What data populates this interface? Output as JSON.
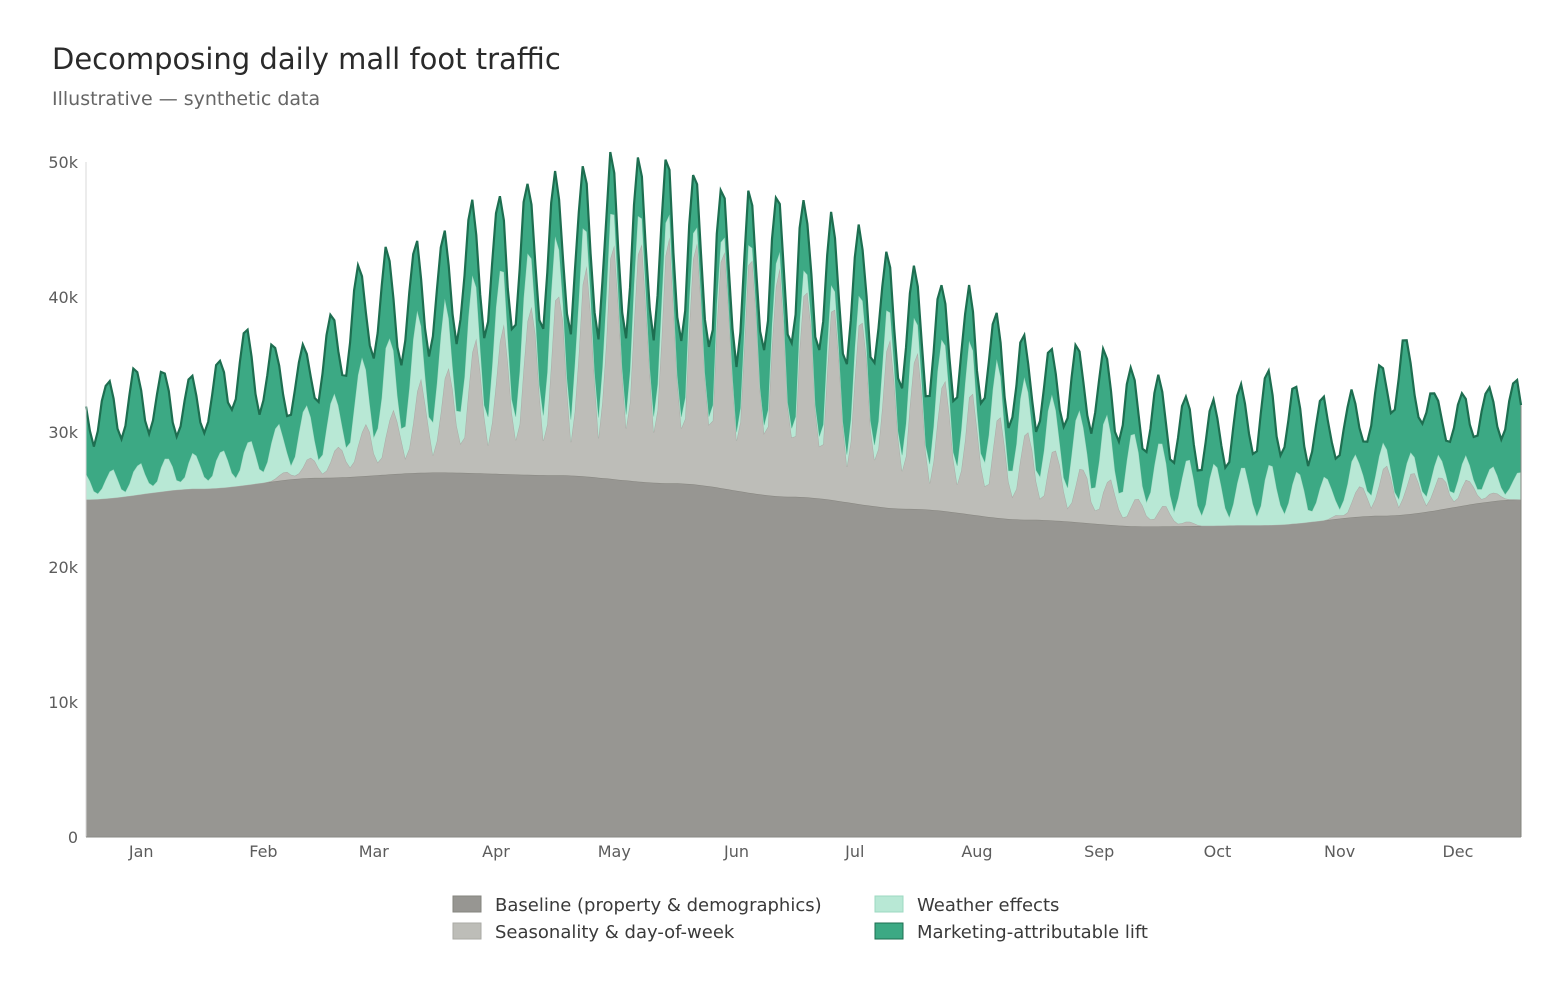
{
  "chart_data": {
    "type": "area",
    "stacked": true,
    "title": "Decomposing daily mall foot traffic",
    "subtitle": "Illustrative — synthetic data",
    "xlabel": "",
    "ylabel": "",
    "x_unit": "day of year",
    "x_range": [
      1,
      365
    ],
    "ylim": [
      0,
      50000
    ],
    "y_ticks": [
      0,
      10000,
      20000,
      30000,
      40000,
      50000
    ],
    "y_tick_labels": [
      "0",
      "10k",
      "20k",
      "30k",
      "40k",
      "50k"
    ],
    "x_ticks": [
      {
        "label": "Jan",
        "day": 15
      },
      {
        "label": "Feb",
        "day": 46
      },
      {
        "label": "Mar",
        "day": 74
      },
      {
        "label": "Apr",
        "day": 105
      },
      {
        "label": "May",
        "day": 135
      },
      {
        "label": "Jun",
        "day": 166
      },
      {
        "label": "Jul",
        "day": 196
      },
      {
        "label": "Aug",
        "day": 227
      },
      {
        "label": "Sep",
        "day": 258
      },
      {
        "label": "Oct",
        "day": 288
      },
      {
        "label": "Nov",
        "day": 319
      },
      {
        "label": "Dec",
        "day": 349
      }
    ],
    "legend_position": "bottom-center",
    "grid": false,
    "series": [
      {
        "name": "Baseline (property & demographics)",
        "color": "#979692",
        "edge": "#86857f",
        "anchors": [
          [
            1,
            25000
          ],
          [
            30,
            25800
          ],
          [
            60,
            26600
          ],
          [
            90,
            27000
          ],
          [
            120,
            26800
          ],
          [
            150,
            26200
          ],
          [
            180,
            25200
          ],
          [
            210,
            24300
          ],
          [
            240,
            23500
          ],
          [
            270,
            23000
          ],
          [
            300,
            23100
          ],
          [
            330,
            23800
          ],
          [
            365,
            25000
          ]
        ]
      },
      {
        "name": "Seasonality & day-of-week",
        "color": "#bdbdb8",
        "edge": "#aaaaa5",
        "anchors": [
          [
            1,
            0
          ],
          [
            20,
            0
          ],
          [
            45,
            0
          ],
          [
            60,
            1000
          ],
          [
            75,
            2500
          ],
          [
            90,
            4500
          ],
          [
            105,
            6500
          ],
          [
            120,
            8500
          ],
          [
            135,
            10500
          ],
          [
            150,
            11000
          ],
          [
            165,
            11000
          ],
          [
            180,
            10000
          ],
          [
            195,
            8500
          ],
          [
            210,
            7000
          ],
          [
            225,
            5500
          ],
          [
            240,
            4000
          ],
          [
            255,
            2500
          ],
          [
            270,
            1200
          ],
          [
            285,
            0
          ],
          [
            300,
            0
          ],
          [
            315,
            0
          ],
          [
            330,
            2200
          ],
          [
            345,
            1500
          ],
          [
            365,
            0
          ]
        ],
        "weekly_amplitude": 0.65
      },
      {
        "name": "Weather effects",
        "color": "#b8e8d5",
        "edge": "#9dd9c1",
        "anchors": [
          [
            1,
            1200
          ],
          [
            30,
            1600
          ],
          [
            60,
            2600
          ],
          [
            80,
            4000
          ],
          [
            95,
            3500
          ],
          [
            115,
            3200
          ],
          [
            140,
            1800
          ],
          [
            165,
            900
          ],
          [
            190,
            1200
          ],
          [
            210,
            2000
          ],
          [
            230,
            2800
          ],
          [
            250,
            2800
          ],
          [
            265,
            3200
          ],
          [
            285,
            2800
          ],
          [
            300,
            2600
          ],
          [
            320,
            1800
          ],
          [
            335,
            1000
          ],
          [
            365,
            1200
          ]
        ],
        "weekly_amplitude": 0.7
      },
      {
        "name": "Marketing-attributable lift",
        "color": "#3ca984",
        "edge": "#1d6e50",
        "anchors": [
          [
            1,
            5200
          ],
          [
            15,
            5600
          ],
          [
            30,
            4500
          ],
          [
            40,
            6800
          ],
          [
            55,
            4000
          ],
          [
            70,
            6500
          ],
          [
            85,
            5200
          ],
          [
            105,
            5800
          ],
          [
            120,
            5300
          ],
          [
            135,
            4600
          ],
          [
            150,
            4800
          ],
          [
            165,
            4000
          ],
          [
            180,
            5500
          ],
          [
            195,
            5500
          ],
          [
            210,
            4200
          ],
          [
            225,
            4200
          ],
          [
            240,
            3200
          ],
          [
            255,
            4600
          ],
          [
            270,
            4000
          ],
          [
            285,
            3800
          ],
          [
            300,
            5600
          ],
          [
            315,
            4800
          ],
          [
            325,
            4000
          ],
          [
            335,
            7500
          ],
          [
            345,
            4000
          ],
          [
            365,
            5400
          ]
        ],
        "weekly_amplitude": 0.35
      }
    ]
  }
}
